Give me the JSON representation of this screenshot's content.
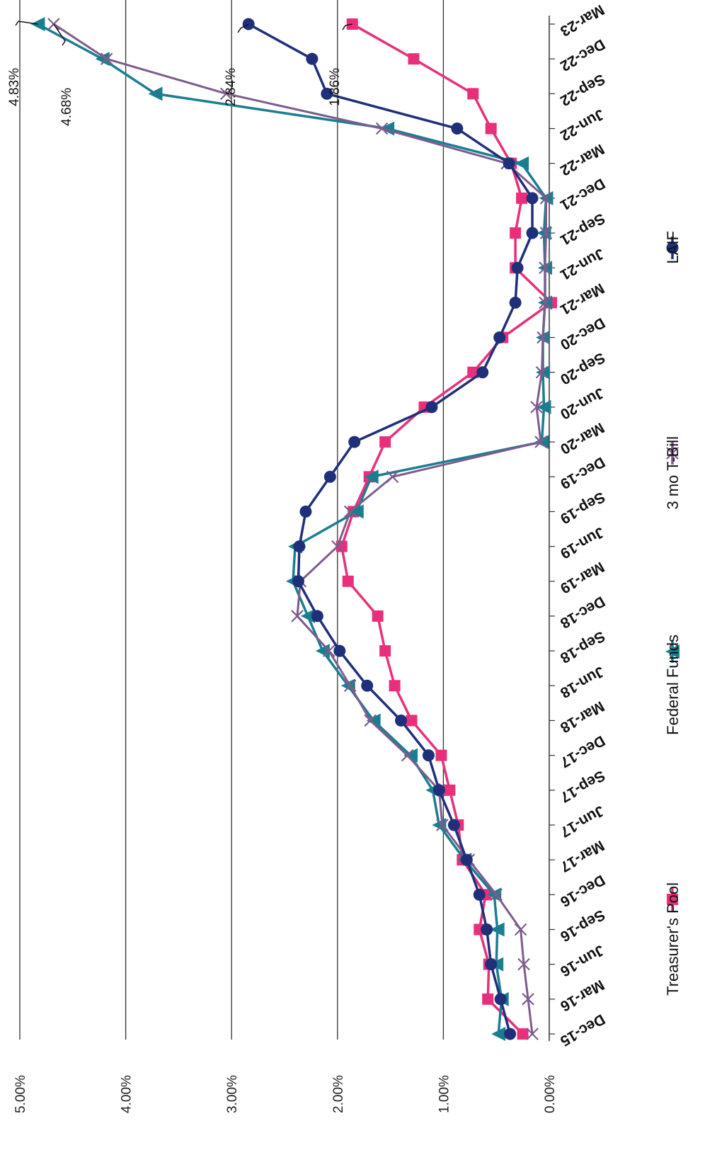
{
  "chart_data": {
    "type": "line",
    "title": "",
    "xlabel": "",
    "ylabel": "",
    "ylim": [
      0,
      5
    ],
    "y_ticks": [
      "0.00%",
      "1.00%",
      "2.00%",
      "3.00%",
      "4.00%",
      "5.00%"
    ],
    "grid": true,
    "legend_position": "bottom",
    "categories": [
      "Dec-15",
      "Mar-16",
      "Jun-16",
      "Sep-16",
      "Dec-16",
      "Mar-17",
      "Jun-17",
      "Sep-17",
      "Dec-17",
      "Mar-18",
      "Jun-18",
      "Sep-18",
      "Dec-18",
      "Mar-19",
      "Jun-19",
      "Sep-19",
      "Dec-19",
      "Mar-20",
      "Jun-20",
      "Sep-20",
      "Dec-20",
      "Mar-21",
      "Jun-21",
      "Sep-21",
      "Dec-21",
      "Mar-22",
      "Jun-22",
      "Sep-22",
      "Dec-22",
      "Mar-23"
    ],
    "series": [
      {
        "name": "Treasurer's Pool",
        "color": "#e8307a",
        "marker": "square",
        "values": [
          0.25,
          0.58,
          0.57,
          0.66,
          0.6,
          0.82,
          0.86,
          0.94,
          1.02,
          1.3,
          1.46,
          1.55,
          1.62,
          1.9,
          1.96,
          1.85,
          1.7,
          1.55,
          1.18,
          0.72,
          0.44,
          -0.02,
          0.32,
          0.32,
          0.26,
          0.36,
          0.55,
          0.72,
          1.28,
          1.86
        ]
      },
      {
        "name": "Federal Funds",
        "color": "#1a7e90",
        "marker": "triangle",
        "values": [
          0.48,
          0.45,
          0.5,
          0.49,
          0.52,
          0.8,
          1.04,
          1.1,
          1.31,
          1.66,
          1.9,
          2.14,
          2.28,
          2.42,
          2.4,
          1.82,
          1.68,
          0.07,
          0.05,
          0.06,
          0.06,
          0.04,
          0.04,
          0.05,
          0.03,
          0.26,
          1.53,
          3.72,
          4.22,
          4.83
        ]
      },
      {
        "name": "3 mo T-Bill",
        "color": "#7d5c8c",
        "marker": "x",
        "values": [
          0.16,
          0.2,
          0.24,
          0.27,
          0.5,
          0.76,
          1.01,
          1.04,
          1.34,
          1.69,
          1.88,
          2.08,
          2.38,
          2.35,
          2.0,
          1.88,
          1.48,
          0.08,
          0.12,
          0.07,
          0.06,
          0.04,
          0.04,
          0.03,
          0.03,
          0.4,
          1.58,
          3.05,
          4.18,
          4.68
        ]
      },
      {
        "name": "LAIF",
        "color": "#1f2f7a",
        "marker": "circle",
        "values": [
          0.37,
          0.46,
          0.55,
          0.59,
          0.66,
          0.78,
          0.9,
          1.04,
          1.14,
          1.4,
          1.72,
          1.98,
          2.19,
          2.37,
          2.36,
          2.3,
          2.07,
          1.84,
          1.11,
          0.63,
          0.47,
          0.32,
          0.3,
          0.16,
          0.16,
          0.38,
          0.87,
          2.1,
          2.24,
          2.84
        ]
      }
    ],
    "annotations": [
      {
        "text": "4.83%",
        "series": "Federal Funds",
        "category": "Mar-23"
      },
      {
        "text": "4.68%",
        "series": "3 mo T-Bill",
        "category": "Mar-23"
      },
      {
        "text": "2.84%",
        "series": "LAIF",
        "category": "Mar-23"
      },
      {
        "text": "1.86%",
        "series": "Treasurer's Pool",
        "category": "Mar-23"
      }
    ]
  }
}
